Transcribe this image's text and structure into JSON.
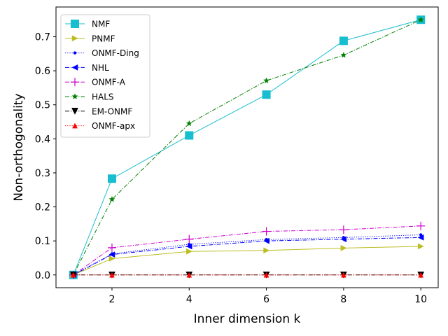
{
  "chart_data": {
    "type": "line",
    "title": "",
    "xlabel": "Inner dimension k",
    "ylabel": "Non-orthogonality",
    "xlim": [
      0.55,
      10.45
    ],
    "ylim": [
      -0.0375,
      0.7875
    ],
    "xticks": [
      2,
      4,
      6,
      8,
      10
    ],
    "yticks": [
      0.0,
      0.1,
      0.2,
      0.3,
      0.4,
      0.5,
      0.6,
      0.7
    ],
    "ytick_labels": [
      "0.0",
      "0.1",
      "0.2",
      "0.3",
      "0.4",
      "0.5",
      "0.6",
      "0.7"
    ],
    "x": [
      1,
      2,
      4,
      6,
      8,
      10
    ],
    "legend_position": "top-left",
    "series": [
      {
        "name": "NMF",
        "values": [
          0.0,
          0.283,
          0.41,
          0.53,
          0.688,
          0.75
        ],
        "color": "#17becf",
        "dash": "",
        "marker": "square"
      },
      {
        "name": "PNMF",
        "values": [
          0.0,
          0.048,
          0.069,
          0.072,
          0.079,
          0.084
        ],
        "color": "#bcbd22",
        "dash": "",
        "marker": "triangle-right"
      },
      {
        "name": "ONMF-Ding",
        "values": [
          0.0,
          0.062,
          0.09,
          0.104,
          0.11,
          0.118
        ],
        "color": "#0000ff",
        "dash": "dotted",
        "marker": "dot"
      },
      {
        "name": "NHL",
        "values": [
          0.0,
          0.06,
          0.084,
          0.1,
          0.105,
          0.11
        ],
        "color": "#0000ff",
        "dash": "dashdot",
        "marker": "triangle-left"
      },
      {
        "name": "ONMF-A",
        "values": [
          0.0,
          0.08,
          0.105,
          0.128,
          0.133,
          0.144
        ],
        "color": "#cc00cc",
        "dash": "dashdot",
        "marker": "plus"
      },
      {
        "name": "HALS",
        "values": [
          0.0,
          0.222,
          0.445,
          0.571,
          0.646,
          0.75
        ],
        "color": "#008000",
        "dash": "dashdot",
        "marker": "star"
      },
      {
        "name": "EM-ONMF",
        "values": [
          0.0,
          0.0,
          0.0,
          0.0,
          0.0,
          0.0
        ],
        "color": "#000000",
        "dash": "dashdot",
        "marker": "triangle-down"
      },
      {
        "name": "ONMF-apx",
        "values": [
          0.0,
          0.0,
          0.0,
          0.0,
          0.0,
          0.0
        ],
        "color": "#ff0000",
        "dash": "dotted",
        "marker": "triangle-up"
      }
    ]
  }
}
